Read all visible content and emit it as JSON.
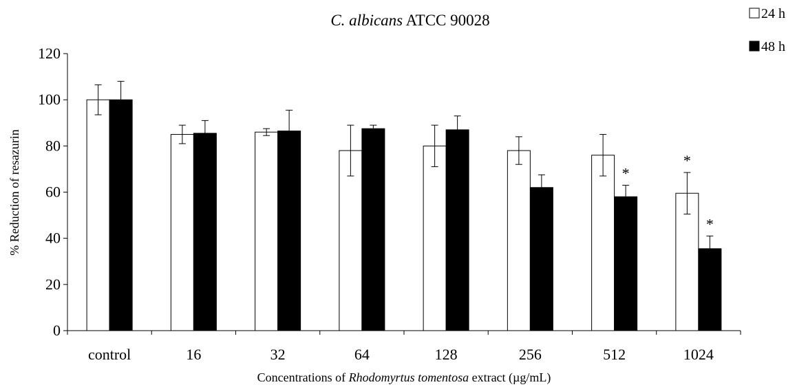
{
  "chart_data": {
    "type": "bar",
    "title_italic": "C. albicans",
    "title_rest": " ATCC 90028",
    "xlabel_pre": "Concentrations of ",
    "xlabel_italic": "Rhodomyrtus tomentosa",
    "xlabel_post": " extract (µg/mL)",
    "ylabel": "% Reduction of resazurin",
    "ylim": [
      0,
      120
    ],
    "yticks": [
      0,
      20,
      40,
      60,
      80,
      100,
      120
    ],
    "categories": [
      "control",
      "16",
      "32",
      "64",
      "128",
      "256",
      "512",
      "1024"
    ],
    "series": [
      {
        "name": "24 h",
        "color": "#ffffff",
        "values": [
          100,
          85,
          86,
          78,
          80,
          78,
          76,
          59.5
        ],
        "errors": [
          6.5,
          4,
          1.5,
          11,
          9,
          6,
          9,
          9
        ],
        "significant": [
          false,
          false,
          false,
          false,
          false,
          false,
          false,
          true
        ]
      },
      {
        "name": "48 h",
        "color": "#000000",
        "values": [
          100,
          85.5,
          86.5,
          87.5,
          87,
          62,
          58,
          35.5
        ],
        "errors": [
          8,
          5.5,
          9,
          1.5,
          6,
          5.5,
          5,
          5.5
        ],
        "significant": [
          false,
          false,
          false,
          false,
          false,
          false,
          true,
          true
        ]
      }
    ],
    "significance_marker": "*",
    "grid": false,
    "legend_position": "top-right"
  }
}
